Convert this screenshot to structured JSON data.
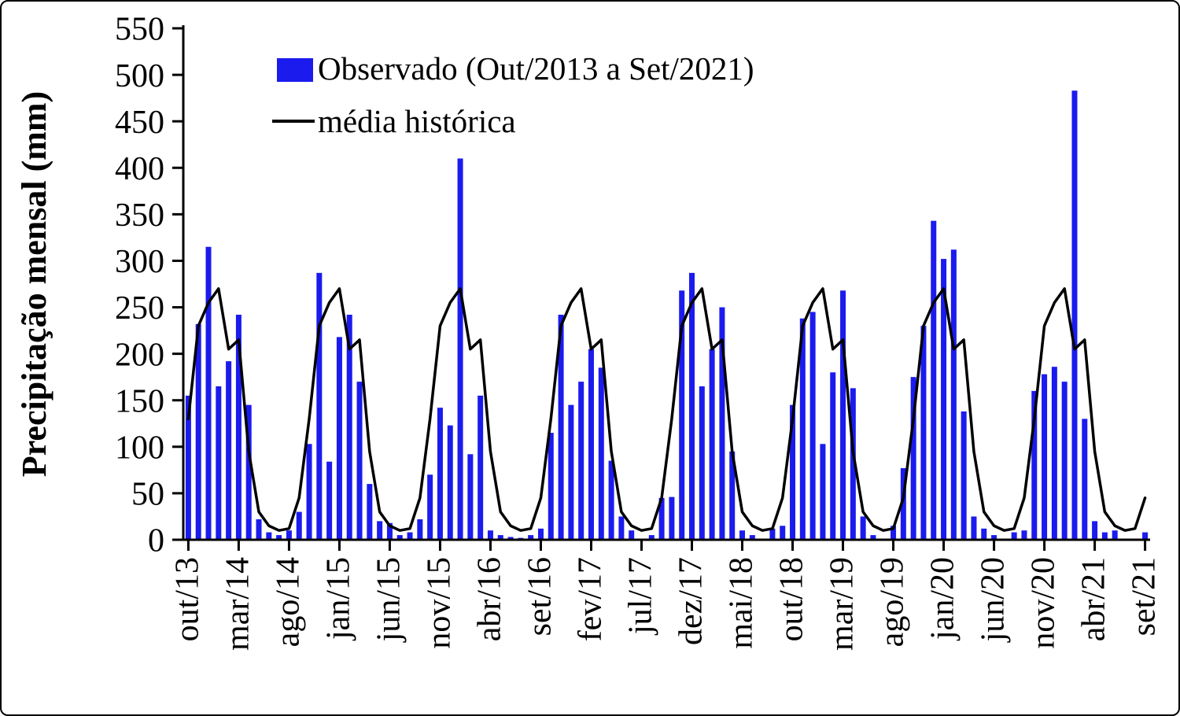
{
  "chart_data": {
    "type": "bar",
    "title": "",
    "ylabel": "Precipitação mensal (mm)",
    "xlabel": "",
    "ylim": [
      0,
      550
    ],
    "ytick_step": 50,
    "y_tick_labels": [
      0,
      50,
      100,
      150,
      200,
      250,
      300,
      350,
      400,
      450,
      500,
      550
    ],
    "tick_every": 5,
    "x_tick_labels": [
      "out/13",
      "mar/14",
      "ago/14",
      "jan/15",
      "jun/15",
      "nov/15",
      "abr/16",
      "set/16",
      "fev/17",
      "jul/17",
      "dez/17",
      "mai/18",
      "out/18",
      "mar/19",
      "ago/19",
      "jan/20",
      "jun/20",
      "nov/20",
      "abr/21",
      "set/21"
    ],
    "grid": false,
    "legend_position": "top-left",
    "series": [
      {
        "name": "Observado (Out/2013 a Set/2021)",
        "type": "bar",
        "color": "#1b1bee",
        "values": [
          155,
          232,
          315,
          165,
          192,
          242,
          145,
          22,
          8,
          5,
          10,
          30,
          103,
          287,
          84,
          218,
          242,
          170,
          60,
          20,
          18,
          5,
          8,
          22,
          70,
          142,
          123,
          410,
          92,
          155,
          10,
          5,
          3,
          2,
          5,
          12,
          115,
          242,
          145,
          170,
          205,
          185,
          85,
          25,
          10,
          0,
          5,
          45,
          46,
          268,
          287,
          165,
          205,
          250,
          95,
          10,
          5,
          0,
          12,
          15,
          145,
          238,
          245,
          103,
          180,
          268,
          163,
          25,
          5,
          0,
          15,
          77,
          175,
          230,
          343,
          302,
          312,
          138,
          25,
          12,
          5,
          0,
          8,
          10,
          160,
          178,
          186,
          170,
          483,
          130,
          20,
          8,
          10,
          0,
          0,
          8
        ]
      },
      {
        "name": "média histórica",
        "type": "line",
        "color": "#000000",
        "months_order": [
          "out",
          "nov",
          "dez",
          "jan",
          "fev",
          "mar",
          "abr",
          "mai",
          "jun",
          "jul",
          "ago",
          "set"
        ],
        "monthly_mean": [
          130,
          230,
          255,
          270,
          205,
          215,
          95,
          30,
          15,
          10,
          12,
          45
        ]
      }
    ]
  }
}
